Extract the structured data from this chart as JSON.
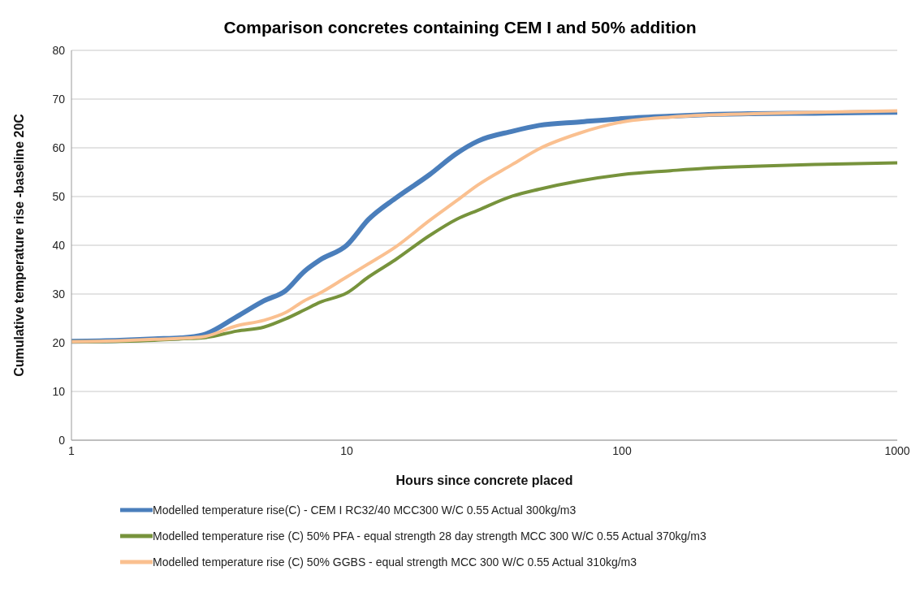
{
  "chart_data": {
    "type": "line",
    "title": "Comparison concretes containing CEM I and 50% addition",
    "xlabel": "Hours since concrete placed",
    "ylabel": "Cumulative temperature rise -baseline 20C",
    "x": [
      1,
      1.5,
      2,
      2.5,
      3,
      4,
      5,
      6,
      7,
      8,
      10,
      12,
      15,
      20,
      25,
      30,
      40,
      50,
      70,
      100,
      150,
      200,
      300,
      500,
      1000
    ],
    "series": [
      {
        "name": "Modelled temperature rise(C) - CEM I RC32/40 MCC300 W/C 0.55 Actual 300kg/m3",
        "color": "#4a7ebb",
        "values": [
          20.3,
          20.5,
          20.8,
          21,
          21.6,
          25.4,
          28.6,
          30.7,
          34.6,
          37,
          40,
          45.3,
          49.6,
          54.5,
          58.8,
          61.4,
          63.4,
          64.6,
          65.3,
          66,
          66.5,
          66.8,
          67,
          67.1,
          67.3
        ]
      },
      {
        "name": "Modelled temperature rise (C) 50% PFA - equal strength 28 day strength MCC 300 W/C 0.55 Actual 370kg/m3",
        "color": "#77933c",
        "values": [
          20.2,
          20.3,
          20.5,
          20.8,
          21,
          22.4,
          23.2,
          24.9,
          26.7,
          28.3,
          30.2,
          33.5,
          37,
          42,
          45.3,
          47.2,
          50.1,
          51.5,
          53.2,
          54.5,
          55.3,
          55.8,
          56.2,
          56.6,
          56.9
        ]
      },
      {
        "name": "Modelled temperature rise (C) 50% GGBS - equal strength MCC 300 W/C 0.55 Actual 310kg/m3",
        "color": "#fac090",
        "values": [
          20.2,
          20.4,
          20.7,
          20.9,
          21.2,
          23.5,
          24.6,
          26.2,
          28.6,
          30.2,
          33.5,
          36.2,
          39.6,
          45.1,
          49.1,
          52.4,
          56.6,
          59.8,
          63,
          65.3,
          66.3,
          66.7,
          67,
          67.3,
          67.6
        ]
      }
    ],
    "log": "x",
    "xlim": [
      1,
      1000
    ],
    "xticks": [
      1,
      10,
      100,
      1000
    ],
    "ylim": [
      0,
      80
    ],
    "yticks": [
      0,
      10,
      20,
      30,
      40,
      50,
      60,
      70,
      80
    ],
    "grid": "y",
    "legend": "bottom",
    "marker": "none",
    "line_style": "solid"
  }
}
